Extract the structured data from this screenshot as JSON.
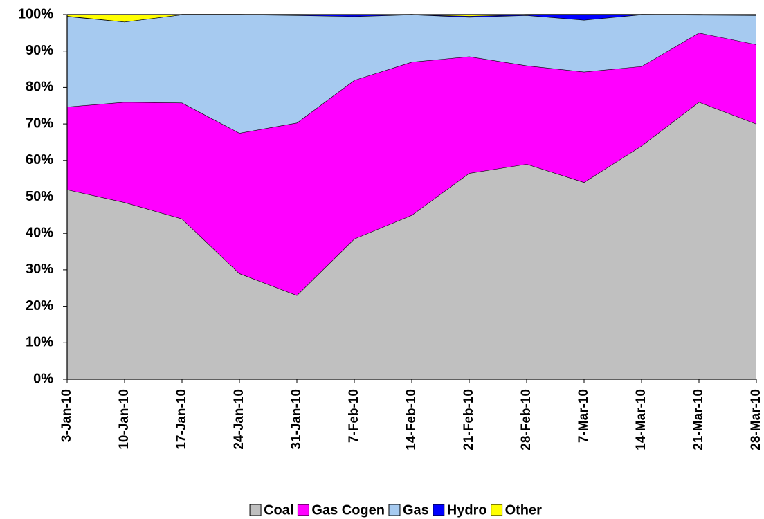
{
  "chart_data": {
    "type": "stacked_area_100",
    "categories": [
      "3-Jan-10",
      "10-Jan-10",
      "17-Jan-10",
      "24-Jan-10",
      "31-Jan-10",
      "7-Feb-10",
      "14-Feb-10",
      "21-Feb-10",
      "28-Feb-10",
      "7-Mar-10",
      "14-Mar-10",
      "21-Mar-10",
      "28-Mar-10"
    ],
    "series": [
      {
        "name": "Coal",
        "color": "#c0c0c0",
        "values": [
          52,
          48.5,
          44,
          29,
          23,
          38.5,
          45,
          56.5,
          59,
          54,
          64,
          76,
          70
        ]
      },
      {
        "name": "Gas Cogen",
        "color": "#ff00ff",
        "values": [
          22.7,
          27.5,
          31.8,
          38.5,
          47.3,
          43.5,
          42,
          32,
          27,
          30.3,
          21.8,
          19,
          21.8
        ]
      },
      {
        "name": "Gas",
        "color": "#a6caf0",
        "values": [
          24.8,
          22,
          24.2,
          32.5,
          29.5,
          17.5,
          13,
          10.8,
          13.8,
          14.2,
          14.2,
          4.9,
          8
        ]
      },
      {
        "name": "Hydro",
        "color": "#0000ff",
        "values": [
          0.1,
          0,
          0,
          0,
          0.2,
          0.4,
          0,
          0.3,
          0.2,
          1.5,
          0,
          0.1,
          0.1
        ]
      },
      {
        "name": "Other",
        "color": "#ffff00",
        "values": [
          0.4,
          2,
          0,
          0,
          0,
          0.1,
          0,
          0.4,
          0,
          0,
          0,
          0,
          0.1
        ]
      }
    ],
    "ylim": [
      0,
      100
    ],
    "yticks": [
      {
        "value": 0,
        "label": "0%"
      },
      {
        "value": 10,
        "label": "10%"
      },
      {
        "value": 20,
        "label": "20%"
      },
      {
        "value": 30,
        "label": "30%"
      },
      {
        "value": 40,
        "label": "40%"
      },
      {
        "value": 50,
        "label": "50%"
      },
      {
        "value": 60,
        "label": "60%"
      },
      {
        "value": 70,
        "label": "70%"
      },
      {
        "value": 80,
        "label": "80%"
      },
      {
        "value": 90,
        "label": "90%"
      },
      {
        "value": 100,
        "label": "100%"
      }
    ],
    "grid": false,
    "legend": "bottom"
  }
}
